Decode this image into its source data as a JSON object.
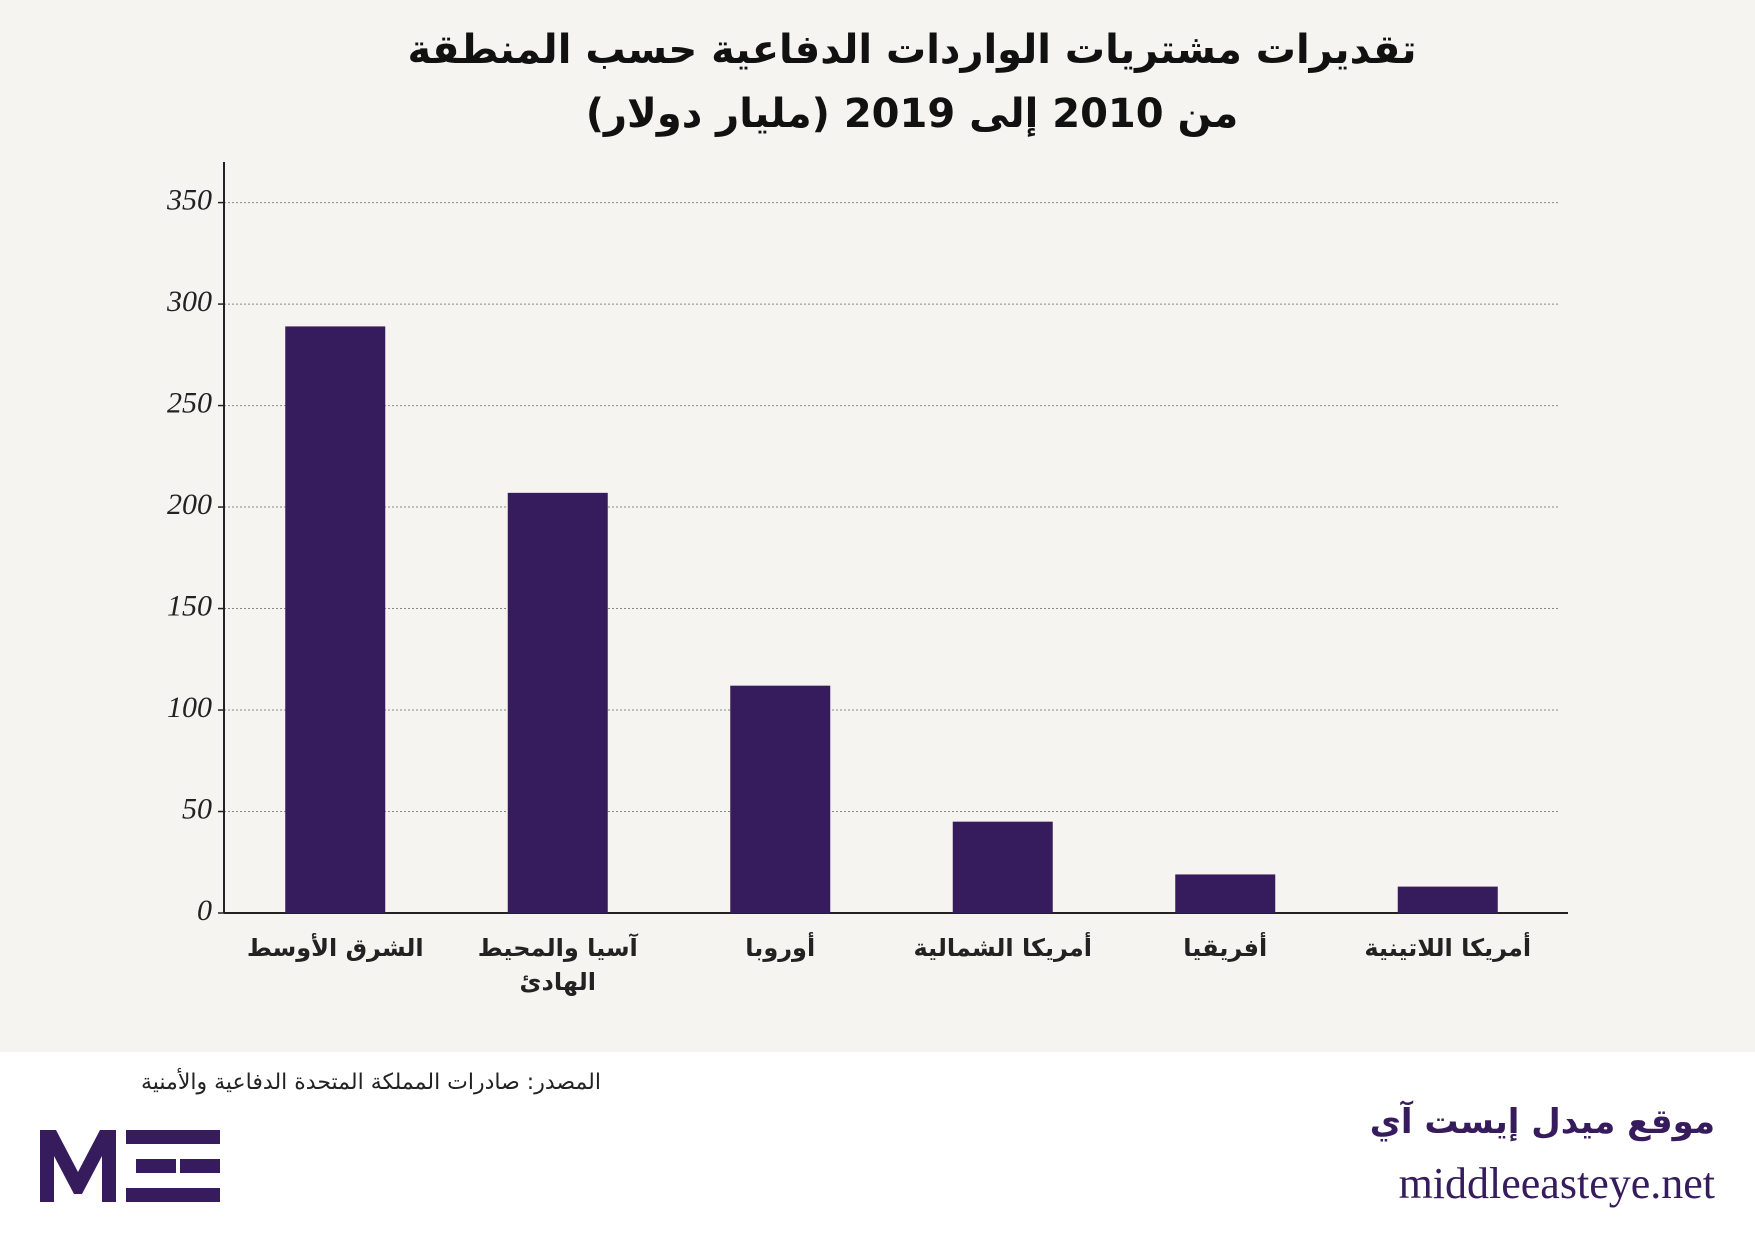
{
  "chart_data": {
    "type": "bar",
    "title": "تقديرات مشتريات الواردات الدفاعية حسب المنطقة",
    "subtitle": "من 2010 إلى 2019 (مليار دولار)",
    "categories": [
      "الشرق الأوسط",
      "آسيا والمحيط الهادئ",
      "أوروبا",
      "أمريكا الشمالية",
      "أفريقيا",
      "أمريكا اللاتينية"
    ],
    "values": [
      289,
      207,
      112,
      45,
      19,
      13
    ],
    "color": "#361c5c",
    "ylim": [
      0,
      370
    ],
    "yticks": [
      0,
      50,
      100,
      150,
      200,
      250,
      300,
      350
    ],
    "grid": true
  },
  "footer": {
    "source": "المصدر: صادرات المملكة المتحدة الدفاعية والأمنية",
    "site_name": "موقع ميدل إيست آي",
    "url": "middleeasteye.net"
  }
}
